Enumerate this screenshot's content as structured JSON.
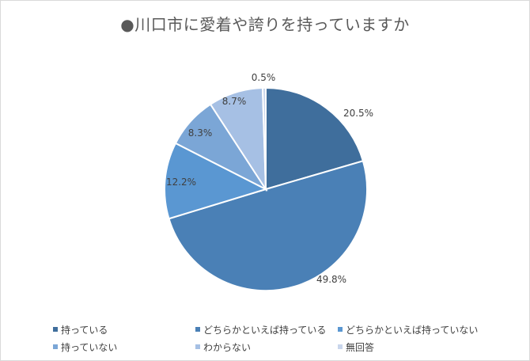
{
  "chart_data": {
    "type": "pie",
    "title": "●川口市に愛着や誇りを持っていますか",
    "categories": [
      "持っている",
      "どちらかといえば持っている",
      "どちらかといえば持っていない",
      "持っていない",
      "わからない",
      "無回答"
    ],
    "values": [
      20.5,
      49.8,
      12.2,
      8.3,
      8.7,
      0.5
    ],
    "data_labels": [
      "20.5%",
      "49.8%",
      "12.2%",
      "8.3%",
      "8.7%",
      "0.5%"
    ],
    "colors": [
      "#3f6e9c",
      "#4a80b6",
      "#5a97d2",
      "#7ba6d6",
      "#a6c0e4",
      "#c9d6ec"
    ],
    "legend_position": "bottom",
    "start_angle": "12 o'clock, clockwise"
  }
}
